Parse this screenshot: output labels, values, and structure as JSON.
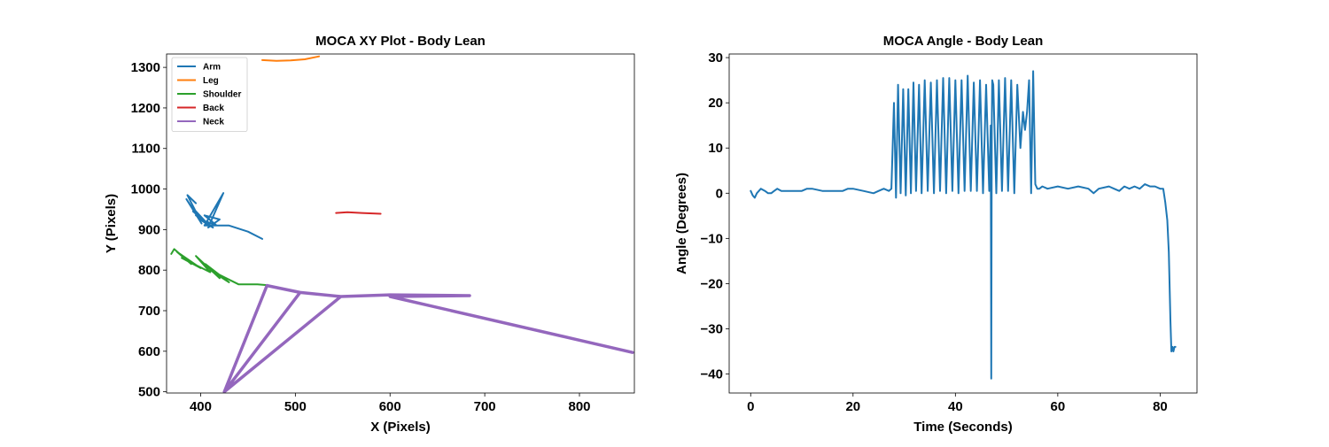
{
  "chart_data": [
    {
      "type": "line",
      "title": "MOCA XY Plot - Body Lean",
      "xlabel": "X (Pixels)",
      "ylabel": "Y (Pixels)",
      "xlim": [
        364,
        858
      ],
      "ylim": [
        497,
        1333
      ],
      "xticks": [
        400,
        500,
        600,
        700,
        800
      ],
      "yticks": [
        500,
        600,
        700,
        800,
        900,
        1000,
        1100,
        1200,
        1300
      ],
      "grid": false,
      "legend_position": "top-left",
      "series": [
        {
          "name": "Arm",
          "color": "#1f77b4",
          "x": [
            395,
            386,
            398,
            385,
            401,
            389,
            405,
            392,
            410,
            395,
            413,
            399,
            416,
            404,
            420,
            408,
            424,
            404,
            430,
            450,
            465
          ],
          "y": [
            965,
            985,
            930,
            975,
            915,
            960,
            920,
            945,
            910,
            935,
            905,
            925,
            912,
            935,
            925,
            905,
            990,
            910,
            910,
            895,
            877
          ]
        },
        {
          "name": "Leg",
          "color": "#ff7f0e",
          "x": [
            465,
            480,
            495,
            510,
            525
          ],
          "y": [
            1318,
            1316,
            1317,
            1320,
            1327
          ]
        },
        {
          "name": "Shoulder",
          "color": "#2ca02c",
          "x": [
            369,
            372,
            390,
            375,
            400,
            380,
            410,
            395,
            420,
            405,
            430,
            410,
            440,
            460,
            470
          ],
          "y": [
            840,
            852,
            815,
            845,
            805,
            830,
            795,
            835,
            780,
            815,
            770,
            800,
            765,
            765,
            763
          ]
        },
        {
          "name": "Back",
          "color": "#d62728",
          "x": [
            543,
            555,
            570,
            590
          ],
          "y": [
            941,
            943,
            941,
            939
          ]
        },
        {
          "name": "Neck",
          "color": "#9467bd",
          "x": [
            470,
            425,
            470,
            505,
            425,
            505,
            548,
            425,
            548,
            600,
            684,
            600,
            856
          ],
          "y": [
            762,
            500,
            762,
            745,
            500,
            745,
            735,
            500,
            735,
            739,
            737,
            735,
            597
          ]
        }
      ]
    },
    {
      "type": "line",
      "title": "MOCA Angle - Body Lean",
      "xlabel": "Time (Seconds)",
      "ylabel": "Angle (Degrees)",
      "xlim": [
        -4.2,
        87.2
      ],
      "ylim": [
        -44.2,
        30.8
      ],
      "xticks": [
        0,
        20,
        40,
        60,
        80
      ],
      "yticks": [
        30,
        20,
        10,
        0,
        -10,
        -20,
        -30,
        -40
      ],
      "grid": false,
      "series": [
        {
          "name": "Angle",
          "color": "#1f77b4",
          "x": [
            0,
            0.4,
            0.8,
            1.2,
            2,
            2.8,
            3.4,
            4,
            4.6,
            5.2,
            6,
            8,
            10,
            11,
            12,
            14,
            16,
            18,
            19,
            20,
            22,
            24,
            25,
            26,
            27,
            27.5,
            28,
            28.4,
            28.8,
            29.3,
            29.8,
            30.3,
            30.8,
            31.3,
            31.8,
            32.3,
            32.9,
            33.4,
            34,
            34.6,
            35.2,
            35.8,
            36.4,
            37,
            37.6,
            38.2,
            38.8,
            39.4,
            40,
            40.6,
            41.2,
            41.8,
            42.4,
            43,
            43.6,
            44.2,
            44.8,
            45.4,
            46,
            46.6,
            46.9,
            47.0,
            47.1,
            47.2,
            47.4,
            48,
            48.5,
            49.1,
            49.7,
            50.3,
            50.9,
            51.5,
            52.1,
            52.7,
            53.2,
            53.6,
            54,
            54.4,
            54.8,
            55.2,
            55.6,
            56,
            56.4,
            57,
            58,
            60,
            62,
            64,
            66,
            67,
            68,
            70,
            71,
            72,
            73,
            74,
            75,
            76,
            77,
            78,
            79,
            80,
            80.6,
            81,
            81.4,
            81.7,
            82,
            82.2,
            82.4,
            82.6,
            82.8,
            83
          ],
          "y": [
            0.5,
            -0.5,
            -1,
            0,
            1,
            0.5,
            0,
            0,
            0.5,
            1,
            0.5,
            0.5,
            0.5,
            1,
            1,
            0.5,
            0.5,
            0.5,
            1,
            1,
            0.5,
            0,
            0.5,
            1,
            0.5,
            1,
            20,
            -1,
            24,
            0,
            23,
            -0.5,
            23,
            0,
            24.5,
            0.5,
            24,
            0,
            25,
            0.5,
            24.5,
            0,
            25,
            0.5,
            25.5,
            0,
            25.5,
            0.5,
            25,
            0,
            25,
            0.5,
            26,
            0.5,
            24.5,
            0.5,
            25,
            0,
            24,
            0.5,
            15,
            -41,
            15,
            25,
            24,
            0,
            25,
            0.5,
            25.5,
            0.5,
            25,
            0,
            24,
            10,
            18,
            14,
            18,
            25,
            0,
            27,
            2,
            1,
            1,
            1.5,
            1,
            1.5,
            1,
            1.5,
            1,
            0,
            1,
            1.5,
            1,
            0.5,
            1.5,
            1,
            1.5,
            1,
            2,
            1.5,
            1.5,
            1,
            1,
            -2,
            -6,
            -13,
            -28,
            -35,
            -34,
            -35,
            -34,
            -34
          ]
        }
      ]
    }
  ]
}
